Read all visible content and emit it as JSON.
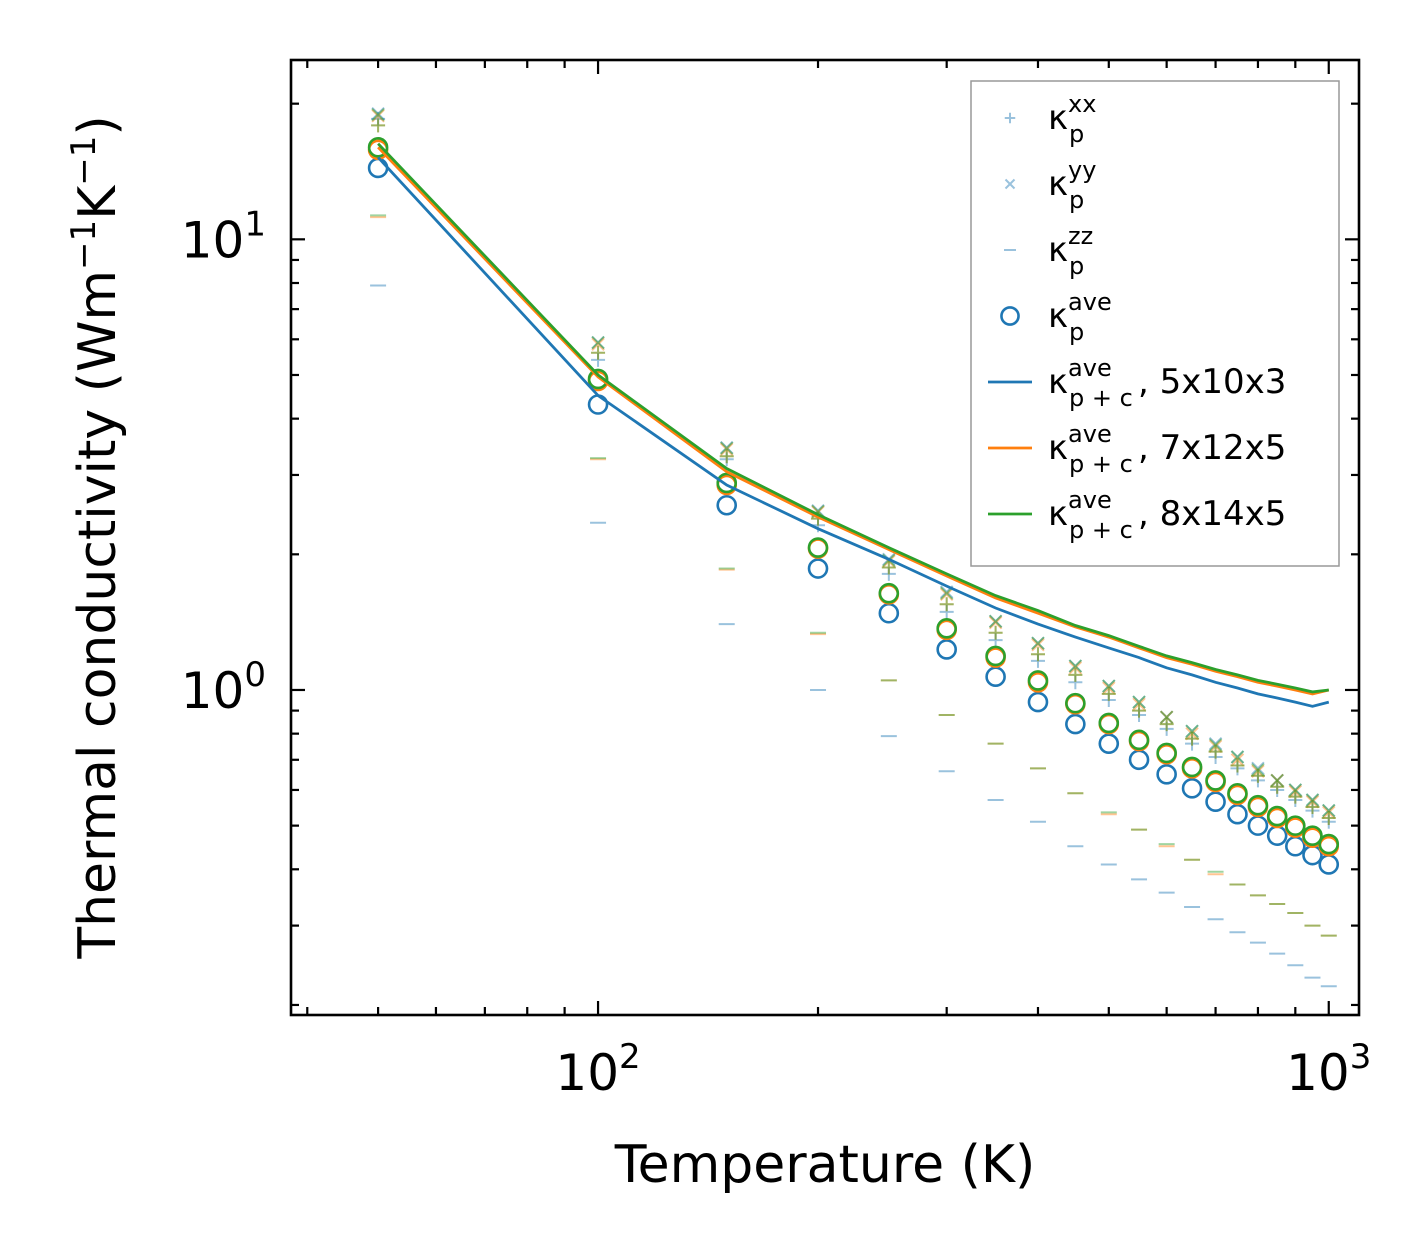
{
  "chart_data": {
    "type": "scatter",
    "xscale": "log",
    "yscale": "log",
    "xlabel": "Temperature (K)",
    "ylabel": "Thermal conductivity (Wm",
    "ylabel_units": {
      "sup1": "−1",
      "mid": "K",
      "sup2": "−1",
      "close": ")"
    },
    "xlim": [
      38,
      1100
    ],
    "ylim": [
      0.19,
      25
    ],
    "xticks": [
      {
        "value": 100,
        "base": "10",
        "exp": "2"
      },
      {
        "value": 1000,
        "base": "10",
        "exp": "3"
      }
    ],
    "yticks": [
      {
        "value": 1,
        "base": "10",
        "exp": "0"
      },
      {
        "value": 10,
        "base": "10",
        "exp": "1"
      }
    ],
    "grid": false,
    "legend_position": "top-right",
    "temperatures": [
      50,
      100,
      150,
      200,
      250,
      300,
      350,
      400,
      450,
      500,
      550,
      600,
      650,
      700,
      750,
      800,
      850,
      900,
      950,
      1000
    ],
    "series": [
      {
        "name": "p,xx,5x10x3",
        "marker": "plus",
        "color": "#1f77b4",
        "alpha": 0.45,
        "values": [
          18.5,
          5.4,
          3.25,
          2.32,
          1.81,
          1.49,
          1.29,
          1.16,
          1.04,
          0.95,
          0.88,
          0.82,
          0.76,
          0.71,
          0.67,
          0.63,
          0.6,
          0.57,
          0.54,
          0.51
        ]
      },
      {
        "name": "p,yy,5x10x3",
        "marker": "x",
        "color": "#1f77b4",
        "alpha": 0.45,
        "values": [
          19.0,
          5.9,
          3.45,
          2.5,
          1.95,
          1.65,
          1.42,
          1.27,
          1.13,
          1.02,
          0.94,
          0.87,
          0.81,
          0.76,
          0.71,
          0.67,
          0.63,
          0.6,
          0.57,
          0.54
        ]
      },
      {
        "name": "p,zz,5x10x3",
        "marker": "dash",
        "color": "#1f77b4",
        "alpha": 0.45,
        "values": [
          7.9,
          2.35,
          1.4,
          1.0,
          0.79,
          0.66,
          0.57,
          0.51,
          0.45,
          0.41,
          0.38,
          0.355,
          0.33,
          0.31,
          0.29,
          0.275,
          0.26,
          0.245,
          0.23,
          0.22
        ]
      },
      {
        "name": "p,xx,7x12x5",
        "marker": "plus",
        "color": "#ff7f0e",
        "alpha": 0.45,
        "values": [
          17.9,
          5.6,
          3.3,
          2.4,
          1.87,
          1.55,
          1.34,
          1.2,
          1.08,
          0.98,
          0.9,
          0.84,
          0.78,
          0.73,
          0.68,
          0.645,
          0.61,
          0.58,
          0.55,
          0.52
        ]
      },
      {
        "name": "p,yy,7x12x5",
        "marker": "x",
        "color": "#ff7f0e",
        "alpha": 0.45,
        "values": [
          18.8,
          5.85,
          3.42,
          2.48,
          1.93,
          1.63,
          1.41,
          1.26,
          1.12,
          1.01,
          0.93,
          0.87,
          0.8,
          0.75,
          0.7,
          0.66,
          0.63,
          0.595,
          0.565,
          0.535
        ]
      },
      {
        "name": "p,zz,7x12x5",
        "marker": "dash",
        "color": "#ff7f0e",
        "alpha": 0.45,
        "values": [
          11.2,
          3.25,
          1.85,
          1.33,
          1.05,
          0.88,
          0.76,
          0.67,
          0.59,
          0.53,
          0.49,
          0.45,
          0.42,
          0.39,
          0.37,
          0.35,
          0.335,
          0.32,
          0.3,
          0.285
        ]
      },
      {
        "name": "p,xx,8x14x5",
        "marker": "plus",
        "color": "#2ca02c",
        "alpha": 0.45,
        "values": [
          17.9,
          5.6,
          3.3,
          2.4,
          1.87,
          1.55,
          1.34,
          1.2,
          1.08,
          0.98,
          0.9,
          0.84,
          0.78,
          0.73,
          0.68,
          0.645,
          0.61,
          0.58,
          0.55,
          0.52
        ]
      },
      {
        "name": "p,yy,8x14x5",
        "marker": "x",
        "color": "#2ca02c",
        "alpha": 0.45,
        "values": [
          18.9,
          5.9,
          3.44,
          2.49,
          1.94,
          1.64,
          1.42,
          1.27,
          1.13,
          1.02,
          0.94,
          0.87,
          0.81,
          0.755,
          0.71,
          0.665,
          0.63,
          0.6,
          0.57,
          0.54
        ]
      },
      {
        "name": "p,zz,8x14x5",
        "marker": "dash",
        "color": "#2ca02c",
        "alpha": 0.45,
        "values": [
          11.3,
          3.27,
          1.86,
          1.34,
          1.05,
          0.88,
          0.76,
          0.67,
          0.59,
          0.535,
          0.49,
          0.455,
          0.42,
          0.395,
          0.37,
          0.35,
          0.335,
          0.32,
          0.3,
          0.285
        ]
      },
      {
        "name": "p,ave,5x10x3",
        "marker": "circle",
        "color": "#1f77b4",
        "alpha": 1,
        "values": [
          14.4,
          4.3,
          2.57,
          1.86,
          1.48,
          1.23,
          1.07,
          0.94,
          0.84,
          0.76,
          0.7,
          0.65,
          0.605,
          0.565,
          0.53,
          0.5,
          0.475,
          0.45,
          0.43,
          0.41
        ]
      },
      {
        "name": "p,ave,7x12x5",
        "marker": "circle",
        "color": "#ff7f0e",
        "alpha": 1,
        "values": [
          15.8,
          4.85,
          2.85,
          2.06,
          1.63,
          1.36,
          1.18,
          1.04,
          0.93,
          0.84,
          0.77,
          0.72,
          0.67,
          0.625,
          0.585,
          0.55,
          0.52,
          0.495,
          0.47,
          0.45
        ]
      },
      {
        "name": "p,ave,8x14x5",
        "marker": "circle",
        "color": "#2ca02c",
        "alpha": 1,
        "values": [
          16.0,
          4.9,
          2.88,
          2.07,
          1.64,
          1.37,
          1.19,
          1.05,
          0.935,
          0.845,
          0.775,
          0.725,
          0.675,
          0.63,
          0.59,
          0.555,
          0.525,
          0.5,
          0.475,
          0.455
        ]
      },
      {
        "name": "p+c,ave,5x10x3",
        "marker": "line",
        "color": "#1f77b4",
        "alpha": 1,
        "values": [
          15.2,
          4.5,
          2.85,
          2.28,
          1.95,
          1.7,
          1.52,
          1.4,
          1.31,
          1.24,
          1.18,
          1.12,
          1.08,
          1.04,
          1.01,
          0.98,
          0.96,
          0.94,
          0.92,
          0.94
        ]
      },
      {
        "name": "p+c,ave,7x12x5",
        "marker": "line",
        "color": "#ff7f0e",
        "alpha": 1,
        "values": [
          16.0,
          4.95,
          3.05,
          2.42,
          2.05,
          1.79,
          1.6,
          1.48,
          1.38,
          1.31,
          1.24,
          1.18,
          1.14,
          1.1,
          1.07,
          1.04,
          1.02,
          1.0,
          0.98,
          1.0
        ]
      },
      {
        "name": "p+c,ave,8x14x5",
        "marker": "line",
        "color": "#2ca02c",
        "alpha": 1,
        "values": [
          16.3,
          5.0,
          3.1,
          2.45,
          2.07,
          1.81,
          1.62,
          1.5,
          1.39,
          1.32,
          1.25,
          1.19,
          1.15,
          1.11,
          1.08,
          1.05,
          1.03,
          1.01,
          0.99,
          1.0
        ]
      }
    ],
    "legend": [
      {
        "marker": "plus",
        "color": "#1f77b4",
        "alpha": 0.45,
        "sym": "κ",
        "sub": "p",
        "sup": "xx",
        "suffix": ""
      },
      {
        "marker": "x",
        "color": "#1f77b4",
        "alpha": 0.45,
        "sym": "κ",
        "sub": "p",
        "sup": "yy",
        "suffix": ""
      },
      {
        "marker": "dash",
        "color": "#1f77b4",
        "alpha": 0.45,
        "sym": "κ",
        "sub": "p",
        "sup": "zz",
        "suffix": ""
      },
      {
        "marker": "circle",
        "color": "#1f77b4",
        "alpha": 1,
        "sym": "κ",
        "sub": "p",
        "sup": "ave",
        "suffix": ""
      },
      {
        "marker": "line",
        "color": "#1f77b4",
        "alpha": 1,
        "sym": "κ",
        "sub": "p + c",
        "sup": "ave",
        "suffix": ", 5x10x3"
      },
      {
        "marker": "line",
        "color": "#ff7f0e",
        "alpha": 1,
        "sym": "κ",
        "sub": "p + c",
        "sup": "ave",
        "suffix": ", 7x12x5"
      },
      {
        "marker": "line",
        "color": "#2ca02c",
        "alpha": 1,
        "sym": "κ",
        "sub": "p + c",
        "sup": "ave",
        "suffix": ", 8x14x5"
      }
    ]
  }
}
